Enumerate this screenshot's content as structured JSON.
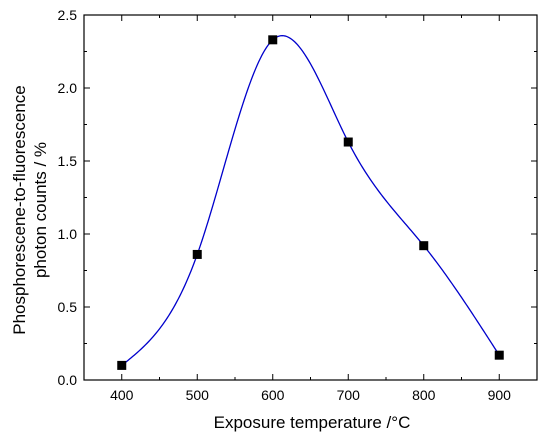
{
  "chart_data": {
    "type": "scatter",
    "title": "",
    "xlabel": "Exposure temperature /°C",
    "ylabel_lines": [
      "Phosphorescene-to-fluorescence",
      "photon counts / %"
    ],
    "xlim": [
      350,
      950
    ],
    "ylim": [
      0,
      2.5
    ],
    "xticks": [
      400,
      500,
      600,
      700,
      800,
      900
    ],
    "yticks": [
      0.0,
      0.5,
      1.0,
      1.5,
      2.0,
      2.5
    ],
    "ytick_labels": [
      "0.0",
      "0.5",
      "1.0",
      "1.5",
      "2.0",
      "2.5"
    ],
    "grid": false,
    "legend": "none",
    "series": [
      {
        "x": [
          400,
          500,
          600,
          700,
          800,
          900
        ],
        "y": [
          0.1,
          0.86,
          2.33,
          1.63,
          0.92,
          0.17
        ],
        "marker": "square",
        "marker_color": "#000000",
        "line": "smooth-spline",
        "line_color": "#0000cc"
      }
    ]
  }
}
